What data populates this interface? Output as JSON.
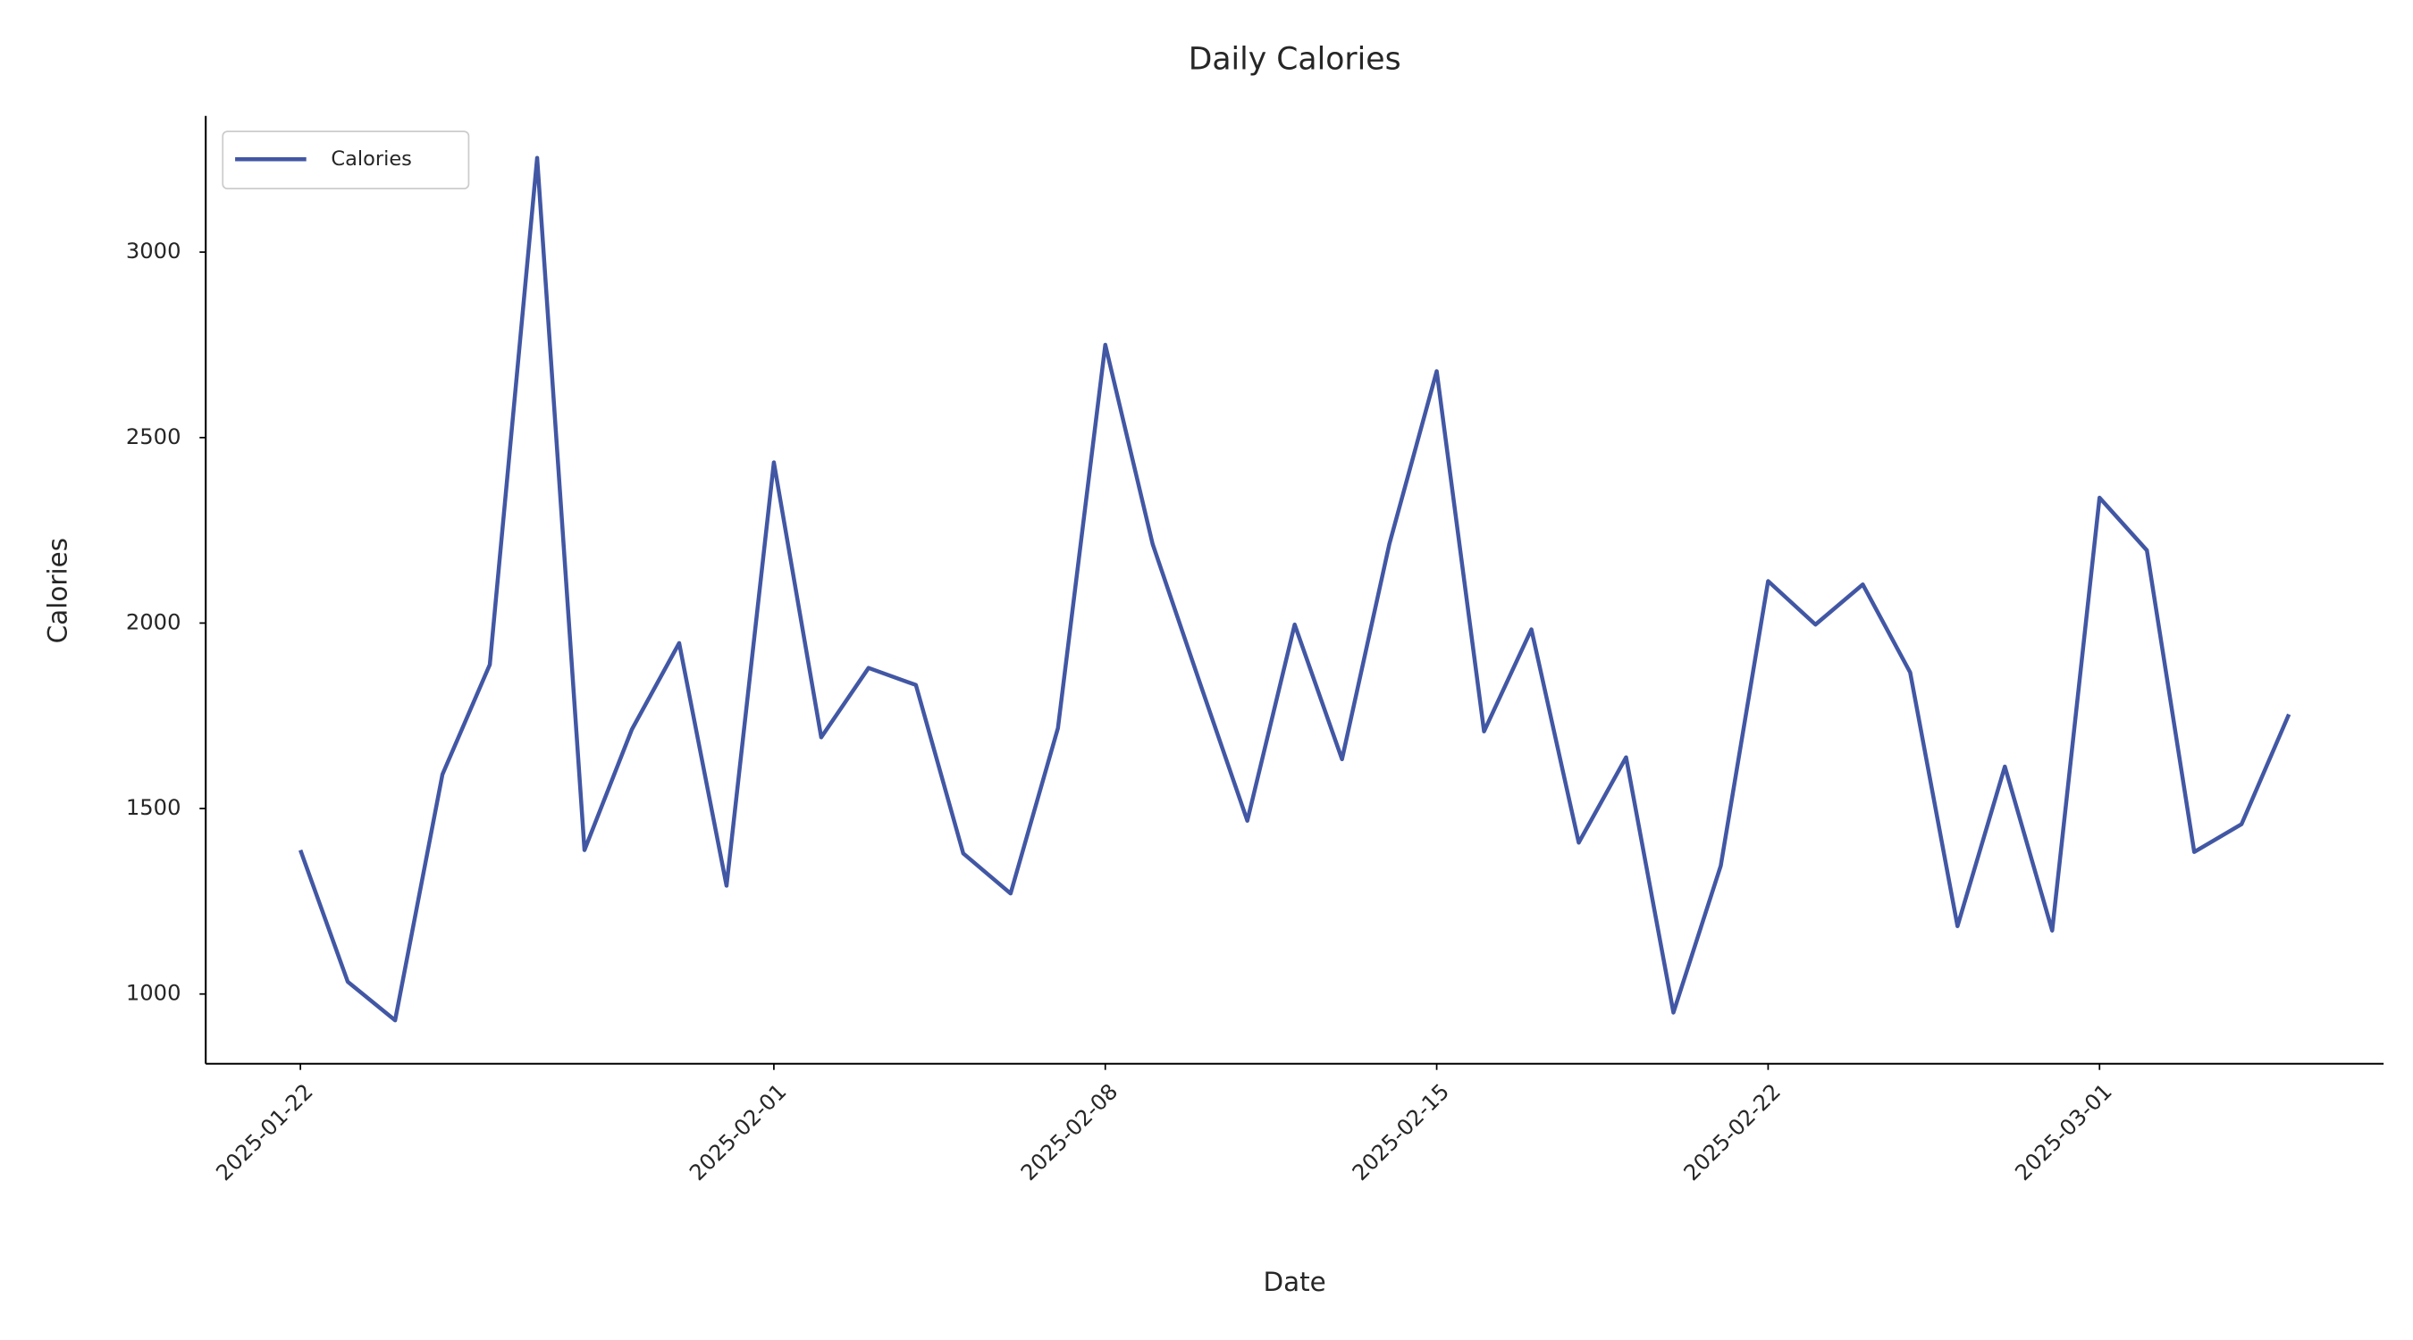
{
  "chart_data": {
    "type": "line",
    "title": "Daily Calories",
    "xlabel": "Date",
    "ylabel": "Calories",
    "x": [
      "2025-01-22",
      "2025-01-23",
      "2025-01-24",
      "2025-01-25",
      "2025-01-26",
      "2025-01-27",
      "2025-01-28",
      "2025-01-29",
      "2025-01-30",
      "2025-01-31",
      "2025-02-01",
      "2025-02-02",
      "2025-02-03",
      "2025-02-04",
      "2025-02-05",
      "2025-02-06",
      "2025-02-07",
      "2025-02-08",
      "2025-02-09",
      "2025-02-10",
      "2025-02-11",
      "2025-02-12",
      "2025-02-13",
      "2025-02-14",
      "2025-02-15",
      "2025-02-16",
      "2025-02-17",
      "2025-02-18",
      "2025-02-19",
      "2025-02-20",
      "2025-02-21",
      "2025-02-22",
      "2025-02-23",
      "2025-02-24",
      "2025-02-25",
      "2025-02-26",
      "2025-02-27",
      "2025-02-28",
      "2025-03-01",
      "2025-03-02",
      "2025-03-03",
      "2025-03-04",
      "2025-03-05"
    ],
    "series": [
      {
        "name": "Calories",
        "color": "#4257a4",
        "values": [
          1388,
          1033,
          929,
          1592,
          1888,
          3254,
          1388,
          1713,
          1946,
          1292,
          2433,
          1692,
          1879,
          1833,
          1379,
          1271,
          1717,
          2750,
          2213,
          1838,
          1467,
          1996,
          1633,
          2213,
          2679,
          1708,
          1983,
          1408,
          1638,
          950,
          1346,
          2113,
          1996,
          2104,
          1867,
          1183,
          1613,
          1171,
          2338,
          2196,
          1383,
          1458,
          1754
        ]
      }
    ],
    "xlim": [
      "2025-01-20",
      "2025-03-07"
    ],
    "xticks": [
      "2025-01-22",
      "2025-02-01",
      "2025-02-08",
      "2025-02-15",
      "2025-02-22",
      "2025-03-01"
    ],
    "ylim": [
      812,
      3367
    ],
    "yticks": [
      1000,
      1500,
      2000,
      2500,
      3000
    ],
    "legend": "upper left",
    "grid": false
  }
}
